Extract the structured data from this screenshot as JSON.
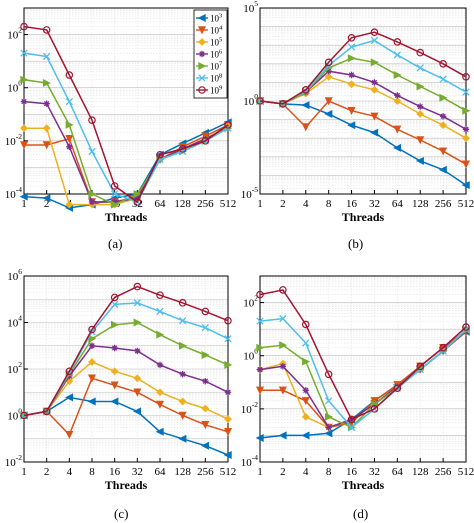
{
  "figure": {
    "x_categories": [
      "1",
      "2",
      "4",
      "8",
      "16",
      "32",
      "64",
      "128",
      "256",
      "512"
    ],
    "series_names": [
      "10^3",
      "10^4",
      "10^5",
      "10^6",
      "10^7",
      "10^8",
      "10^9"
    ],
    "series_labels": [
      {
        "base": "10",
        "exp": "3"
      },
      {
        "base": "10",
        "exp": "4"
      },
      {
        "base": "10",
        "exp": "5"
      },
      {
        "base": "10",
        "exp": "6"
      },
      {
        "base": "10",
        "exp": "7"
      },
      {
        "base": "10",
        "exp": "8"
      },
      {
        "base": "10",
        "exp": "9"
      }
    ],
    "series_colors": [
      "#0072BD",
      "#D95319",
      "#EDB120",
      "#7E2F8E",
      "#77AC30",
      "#4DBEEE",
      "#A2142F"
    ],
    "series_markers": [
      "triangle-left",
      "triangle-down",
      "diamond",
      "star",
      "triangle-right",
      "x",
      "circle"
    ],
    "xlabel": "Threads"
  },
  "chart_data": [
    {
      "type": "line",
      "panel": "a",
      "panel_label": "(a)",
      "xlabel": "Threads",
      "yscale": "log",
      "ylim_exp": [
        -4,
        3
      ],
      "ytick_exps": [
        -4,
        -2,
        0,
        2
      ],
      "legend": "top-right",
      "grid": true,
      "x": [
        "1",
        "2",
        "4",
        "8",
        "16",
        "32",
        "64",
        "128",
        "256",
        "512"
      ],
      "series": [
        {
          "name": "10^3",
          "values": [
            8e-05,
            7e-05,
            3e-05,
            4e-05,
            7e-05,
            0.0001,
            0.003,
            0.008,
            0.02,
            0.05
          ]
        },
        {
          "name": "10^4",
          "values": [
            0.007,
            0.007,
            0.012,
            5e-05,
            5e-05,
            8e-05,
            0.002,
            0.006,
            0.015,
            0.04
          ]
        },
        {
          "name": "10^5",
          "values": [
            0.03,
            0.03,
            4e-05,
            4e-05,
            4e-05,
            7e-05,
            0.002,
            0.005,
            0.012,
            0.035
          ]
        },
        {
          "name": "10^6",
          "values": [
            0.3,
            0.25,
            0.006,
            5e-05,
            5e-05,
            7e-05,
            0.002,
            0.005,
            0.012,
            0.03
          ]
        },
        {
          "name": "10^7",
          "values": [
            2.0,
            1.5,
            0.04,
            0.0001,
            4e-05,
            0.0001,
            0.002,
            0.004,
            0.01,
            0.03
          ]
        },
        {
          "name": "10^8",
          "values": [
            20,
            15,
            0.3,
            0.004,
            0.0001,
            5e-05,
            0.002,
            0.004,
            0.01,
            0.03
          ]
        },
        {
          "name": "10^9",
          "values": [
            200,
            150,
            3,
            0.06,
            0.0002,
            5e-05,
            0.003,
            0.005,
            0.01,
            0.04
          ]
        }
      ]
    },
    {
      "type": "line",
      "panel": "b",
      "panel_label": "(b)",
      "xlabel": "Threads",
      "yscale": "log",
      "ylim_exp": [
        -5,
        5
      ],
      "ytick_exps": [
        -5,
        0,
        5
      ],
      "grid": true,
      "x": [
        "1",
        "2",
        "4",
        "8",
        "16",
        "32",
        "64",
        "128",
        "256",
        "512"
      ],
      "series": [
        {
          "name": "10^3",
          "values": [
            1,
            0.7,
            0.6,
            0.2,
            0.05,
            0.02,
            0.003,
            0.0006,
            0.0002,
            3e-05
          ]
        },
        {
          "name": "10^4",
          "values": [
            1,
            0.7,
            0.04,
            1.0,
            0.3,
            0.15,
            0.03,
            0.008,
            0.002,
            0.0004
          ]
        },
        {
          "name": "10^5",
          "values": [
            1,
            0.7,
            2.5,
            20,
            8,
            4,
            1,
            0.2,
            0.05,
            0.01
          ]
        },
        {
          "name": "10^6",
          "values": [
            1,
            0.7,
            3,
            40,
            25,
            10,
            2,
            0.5,
            0.15,
            0.03
          ]
        },
        {
          "name": "10^7",
          "values": [
            1,
            0.7,
            3,
            60,
            200,
            120,
            25,
            6,
            1.5,
            0.3
          ]
        },
        {
          "name": "10^8",
          "values": [
            1,
            0.7,
            3.5,
            80,
            800,
            1800,
            300,
            60,
            15,
            3
          ]
        },
        {
          "name": "10^9",
          "values": [
            1,
            0.7,
            4,
            120,
            2500,
            5000,
            1500,
            400,
            100,
            20
          ]
        }
      ]
    },
    {
      "type": "line",
      "panel": "c",
      "panel_label": "(c)",
      "xlabel": "Threads",
      "yscale": "log",
      "ylim_exp": [
        -2,
        6
      ],
      "ytick_exps": [
        -2,
        0,
        2,
        4,
        6
      ],
      "grid": true,
      "x": [
        "1",
        "2",
        "4",
        "8",
        "16",
        "32",
        "64",
        "128",
        "256",
        "512"
      ],
      "series": [
        {
          "name": "10^3",
          "values": [
            1,
            1.5,
            6,
            4,
            4,
            1.5,
            0.2,
            0.1,
            0.05,
            0.02
          ]
        },
        {
          "name": "10^4",
          "values": [
            1,
            1.5,
            0.15,
            40,
            20,
            10,
            3,
            1,
            0.4,
            0.2
          ]
        },
        {
          "name": "10^5",
          "values": [
            1,
            1.5,
            30,
            200,
            80,
            40,
            10,
            4,
            2,
            0.7
          ]
        },
        {
          "name": "10^6",
          "values": [
            1,
            1.5,
            50,
            1000,
            800,
            600,
            150,
            60,
            30,
            10
          ]
        },
        {
          "name": "10^7",
          "values": [
            1,
            1.5,
            60,
            2000,
            8000,
            10000,
            3000,
            1000,
            400,
            150
          ]
        },
        {
          "name": "10^8",
          "values": [
            1,
            1.5,
            70,
            4000,
            60000,
            70000,
            30000,
            12000,
            6000,
            2000
          ]
        },
        {
          "name": "10^9",
          "values": [
            1,
            1.5,
            80,
            5000,
            120000,
            350000,
            150000,
            70000,
            30000,
            12000
          ]
        }
      ]
    },
    {
      "type": "line",
      "panel": "d",
      "panel_label": "(d)",
      "xlabel": "Threads",
      "yscale": "log",
      "ylim_exp": [
        -4,
        3
      ],
      "ytick_exps": [
        -4,
        -2,
        0,
        2
      ],
      "grid": true,
      "x": [
        "1",
        "2",
        "4",
        "8",
        "16",
        "32",
        "64",
        "128",
        "256",
        "512"
      ],
      "series": [
        {
          "name": "10^3",
          "values": [
            0.0008,
            0.001,
            0.001,
            0.0012,
            0.004,
            0.02,
            0.08,
            0.4,
            2,
            8
          ]
        },
        {
          "name": "10^4",
          "values": [
            0.05,
            0.05,
            0.02,
            0.002,
            0.003,
            0.02,
            0.08,
            0.4,
            2,
            9
          ]
        },
        {
          "name": "10^5",
          "values": [
            0.3,
            0.5,
            0.005,
            0.002,
            0.004,
            0.015,
            0.07,
            0.3,
            1.5,
            8
          ]
        },
        {
          "name": "10^6",
          "values": [
            0.3,
            0.4,
            0.05,
            0.002,
            0.004,
            0.015,
            0.07,
            0.3,
            1.5,
            8
          ]
        },
        {
          "name": "10^7",
          "values": [
            2,
            2.5,
            0.6,
            0.005,
            0.002,
            0.015,
            0.06,
            0.3,
            1.5,
            9
          ]
        },
        {
          "name": "10^8",
          "values": [
            20,
            25,
            3,
            0.02,
            0.002,
            0.01,
            0.06,
            0.3,
            1.5,
            10
          ]
        },
        {
          "name": "10^9",
          "values": [
            200,
            300,
            15,
            0.2,
            0.004,
            0.01,
            0.06,
            0.4,
            2,
            12
          ]
        }
      ]
    }
  ]
}
